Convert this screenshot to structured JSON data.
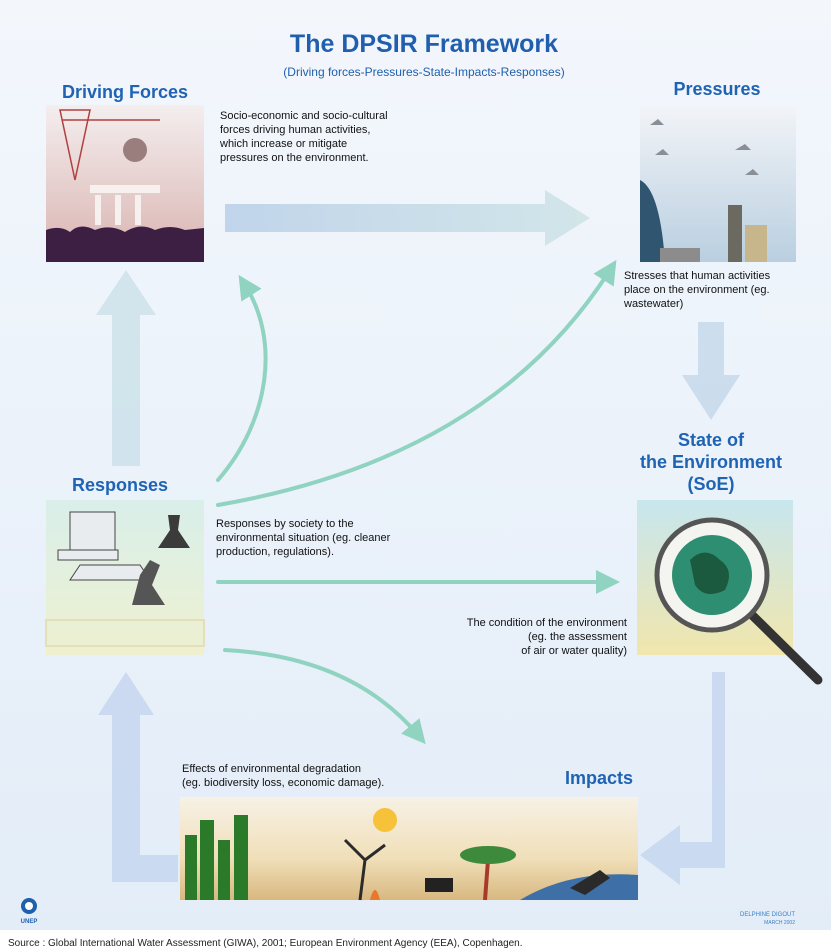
{
  "header": {
    "title": "The DPSIR Framework",
    "subtitle": "(Driving forces-Pressures-State-Impacts-Responses)"
  },
  "nodes": [
    {
      "label": [
        "Driving Forces"
      ],
      "description": [
        "Socio-economic and socio-cultural",
        "forces driving human activities,",
        "which increase or mitigate",
        "pressures on the environment."
      ]
    },
    {
      "label": [
        "Pressures"
      ],
      "description": [
        "Stresses that human activities",
        "place on the environment (eg.",
        "wastewater)"
      ]
    },
    {
      "label": [
        "State of",
        "the Environment",
        "(SoE)"
      ],
      "description": [
        "The condition of the environment",
        "(eg. the assessment",
        "of air or water quality)"
      ]
    },
    {
      "label": [
        "Impacts"
      ],
      "description": [
        "Effects of environmental degradation",
        "(eg. biodiversity loss, economic damage)."
      ]
    },
    {
      "label": [
        "Responses"
      ],
      "description": [
        "Responses by society to the",
        "environmental situation (eg. cleaner",
        "production, regulations)."
      ]
    }
  ],
  "footer": {
    "logo": "UNEP",
    "credit": [
      "DELPHINE DIGOUT",
      "MARCH 2002"
    ],
    "source": "Source : Global International Water Assessment (GIWA), 2001; European Environment Agency (EEA), Copenhagen."
  }
}
